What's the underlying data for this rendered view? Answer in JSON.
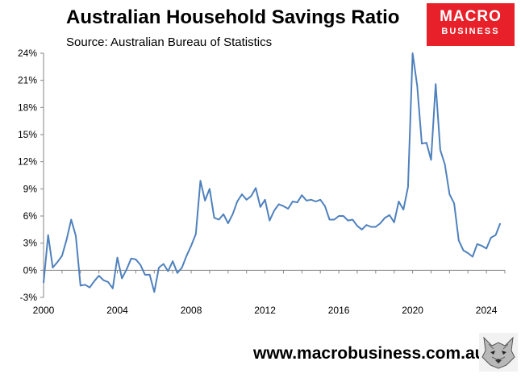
{
  "header": {
    "title": "Australian Household Savings Ratio",
    "subtitle": "Source: Australian Bureau of Statistics"
  },
  "logo": {
    "line1": "MACRO",
    "line2": "BUSINESS"
  },
  "footer": {
    "url": "www.macrobusiness.com.au"
  },
  "colors": {
    "line": "#4f81bd",
    "axis": "#868686",
    "logo": "#e8202a"
  },
  "chart_data": {
    "type": "line",
    "title": "Australian Household Savings Ratio",
    "xlabel": "",
    "ylabel": "",
    "xlim": [
      2000,
      2025
    ],
    "ylim": [
      -3,
      24
    ],
    "grid": false,
    "legend": "none",
    "x_ticks": [
      "2000",
      "2004",
      "2008",
      "2012",
      "2016",
      "2020",
      "2024"
    ],
    "y_ticks": [
      "24%",
      "21%",
      "18%",
      "15%",
      "12%",
      "9%",
      "6%",
      "3%",
      "0%",
      "-3%"
    ],
    "series": [
      {
        "x": [
          2000.0,
          2000.25,
          2000.5,
          2000.75,
          2001.0,
          2001.25,
          2001.5,
          2001.75,
          2002.0,
          2002.25,
          2002.5,
          2002.75,
          2003.0,
          2003.25,
          2003.5,
          2003.75,
          2004.0,
          2004.25,
          2004.5,
          2004.75,
          2005.0,
          2005.25,
          2005.5,
          2005.75,
          2006.0,
          2006.25,
          2006.5,
          2006.75,
          2007.0,
          2007.25,
          2007.5,
          2007.75,
          2008.0,
          2008.25,
          2008.5,
          2008.75,
          2009.0,
          2009.25,
          2009.5,
          2009.75,
          2010.0,
          2010.25,
          2010.5,
          2010.75,
          2011.0,
          2011.25,
          2011.5,
          2011.75,
          2012.0,
          2012.25,
          2012.5,
          2012.75,
          2013.0,
          2013.25,
          2013.5,
          2013.75,
          2014.0,
          2014.25,
          2014.5,
          2014.75,
          2015.0,
          2015.25,
          2015.5,
          2015.75,
          2016.0,
          2016.25,
          2016.5,
          2016.75,
          2017.0,
          2017.25,
          2017.5,
          2017.75,
          2018.0,
          2018.25,
          2018.5,
          2018.75,
          2019.0,
          2019.25,
          2019.5,
          2019.75,
          2020.0,
          2020.25,
          2020.5,
          2020.75,
          2021.0,
          2021.25,
          2021.5,
          2021.75,
          2022.0,
          2022.25,
          2022.5,
          2022.75,
          2023.0,
          2023.25,
          2023.5,
          2023.75,
          2024.0,
          2024.25,
          2024.5,
          2024.75
        ],
        "values": [
          -1.4,
          3.9,
          0.3,
          0.9,
          1.6,
          3.4,
          5.6,
          3.8,
          -1.7,
          -1.6,
          -1.9,
          -1.2,
          -0.6,
          -1.1,
          -1.3,
          -2.0,
          1.4,
          -0.9,
          0.1,
          1.3,
          1.2,
          0.6,
          -0.5,
          -0.5,
          -2.4,
          0.3,
          0.7,
          -0.1,
          1.0,
          -0.3,
          0.3,
          1.6,
          2.7,
          4.0,
          9.9,
          7.7,
          9.0,
          5.8,
          5.6,
          6.2,
          5.2,
          6.2,
          7.6,
          8.4,
          7.8,
          8.2,
          9.1,
          7.0,
          7.8,
          5.5,
          6.6,
          7.3,
          7.1,
          6.8,
          7.6,
          7.5,
          8.3,
          7.7,
          7.8,
          7.6,
          7.8,
          7.1,
          5.6,
          5.6,
          6.0,
          6.0,
          5.5,
          5.6,
          4.9,
          4.5,
          5.0,
          4.8,
          4.8,
          5.2,
          5.8,
          6.1,
          5.3,
          7.6,
          6.7,
          9.2,
          24.0,
          20.4,
          14.0,
          14.1,
          12.2,
          20.6,
          13.3,
          11.7,
          8.4,
          7.4,
          3.3,
          2.2,
          1.9,
          1.5,
          2.9,
          2.7,
          2.4,
          3.6,
          3.9,
          5.2
        ]
      }
    ]
  }
}
